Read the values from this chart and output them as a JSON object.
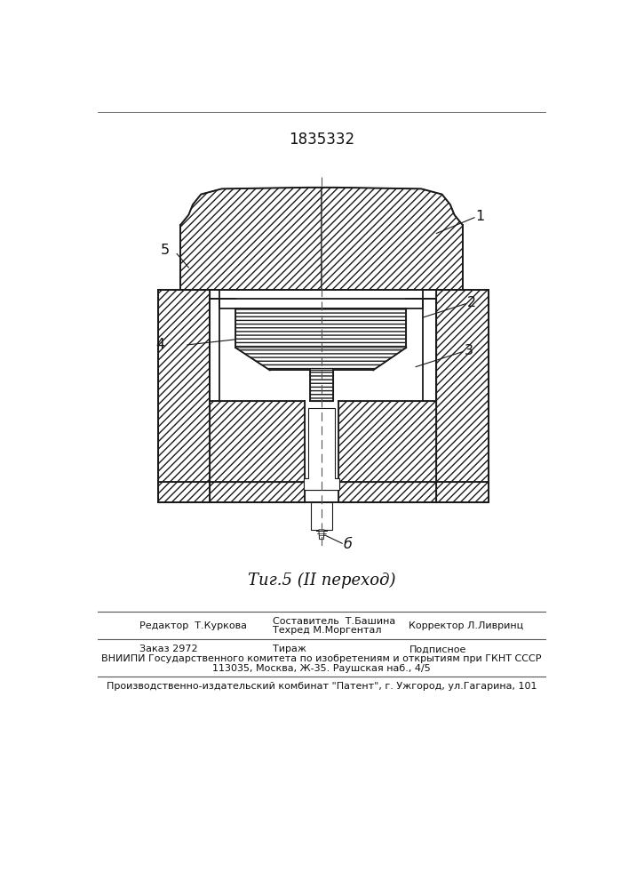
{
  "title": "1835332",
  "fig_caption": "Τиг.5 (ІІ переход)",
  "background_color": "#ffffff",
  "hatch_color": "#333333",
  "line_color": "#111111",
  "label_1": "1",
  "label_2": "2",
  "label_3": "3",
  "label_4": "4",
  "label_5": "5",
  "label_6": "б",
  "footer_line1": "Редактор  Т.Куркова",
  "footer_col2_line1": "Составитель  Т.Башина",
  "footer_col2_line2": "Техред М.Моргентал",
  "footer_col3": "Корректор Л.Ливринц",
  "footer2_col1": "Заказ 2972",
  "footer2_col2": "Тираж",
  "footer2_col3": "Подписное",
  "footer2_line2": "ВНИИПИ Государственного комитета по изобретениям и открытиям при ГКНТ СССР",
  "footer2_line3": "113035, Москва, Ж-35. Раушская наб., 4/5",
  "footer3": "Производственно-издательский комбинат \"Патент\", г. Ужгород, ул.Гагарина, 101"
}
